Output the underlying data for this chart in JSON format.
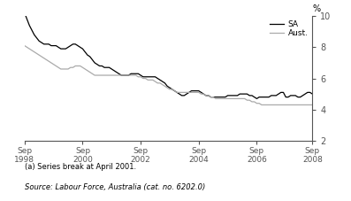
{
  "title": "",
  "ylabel": "%",
  "ylim": [
    2,
    10
  ],
  "yticks": [
    2,
    4,
    6,
    8,
    10
  ],
  "footnote1": "(a) Series break at April 2001.",
  "footnote2": "Source: Labour Force, Australia (cat. no. 6202.0)",
  "legend_sa": "SA",
  "legend_aust": "Aust.",
  "sa_color": "#000000",
  "aust_color": "#aaaaaa",
  "background_color": "#ffffff",
  "sa_data": [
    10.2,
    9.8,
    9.4,
    9.1,
    8.8,
    8.6,
    8.4,
    8.3,
    8.2,
    8.2,
    8.2,
    8.1,
    8.1,
    8.1,
    8.0,
    7.9,
    7.9,
    7.9,
    8.0,
    8.1,
    8.2,
    8.2,
    8.1,
    8.0,
    7.9,
    7.7,
    7.5,
    7.4,
    7.2,
    7.0,
    6.9,
    6.8,
    6.8,
    6.7,
    6.7,
    6.7,
    6.6,
    6.5,
    6.4,
    6.3,
    6.2,
    6.2,
    6.2,
    6.2,
    6.3,
    6.3,
    6.3,
    6.3,
    6.2,
    6.1,
    6.1,
    6.1,
    6.1,
    6.1,
    6.1,
    6.0,
    5.9,
    5.8,
    5.7,
    5.5,
    5.4,
    5.3,
    5.2,
    5.1,
    5.0,
    4.9,
    4.9,
    5.0,
    5.1,
    5.2,
    5.2,
    5.2,
    5.2,
    5.1,
    5.0,
    4.9,
    4.9,
    4.8,
    4.8,
    4.8,
    4.8,
    4.8,
    4.8,
    4.8,
    4.9,
    4.9,
    4.9,
    4.9,
    4.9,
    5.0,
    5.0,
    5.0,
    5.0,
    4.9,
    4.9,
    4.8,
    4.7,
    4.8,
    4.8,
    4.8,
    4.8,
    4.8,
    4.9,
    4.9,
    4.9,
    5.0,
    5.1,
    5.1,
    4.8,
    4.8,
    4.9,
    4.9,
    4.9,
    4.8,
    4.8,
    4.9,
    5.0,
    5.1,
    5.1,
    5.0
  ],
  "aust_data": [
    8.1,
    8.0,
    7.9,
    7.8,
    7.7,
    7.6,
    7.5,
    7.4,
    7.3,
    7.2,
    7.1,
    7.0,
    6.9,
    6.8,
    6.7,
    6.6,
    6.6,
    6.6,
    6.6,
    6.7,
    6.7,
    6.8,
    6.8,
    6.8,
    6.7,
    6.6,
    6.5,
    6.4,
    6.3,
    6.2,
    6.2,
    6.2,
    6.2,
    6.2,
    6.2,
    6.2,
    6.2,
    6.2,
    6.2,
    6.2,
    6.2,
    6.2,
    6.2,
    6.2,
    6.2,
    6.2,
    6.2,
    6.1,
    6.1,
    6.0,
    6.0,
    5.9,
    5.9,
    5.9,
    5.8,
    5.7,
    5.7,
    5.6,
    5.5,
    5.4,
    5.3,
    5.3,
    5.2,
    5.1,
    5.1,
    5.1,
    5.1,
    5.1,
    5.1,
    5.1,
    5.1,
    5.1,
    5.1,
    5.0,
    5.0,
    4.9,
    4.9,
    4.8,
    4.8,
    4.7,
    4.7,
    4.7,
    4.7,
    4.7,
    4.7,
    4.7,
    4.7,
    4.7,
    4.7,
    4.7,
    4.7,
    4.7,
    4.6,
    4.6,
    4.5,
    4.5,
    4.4,
    4.4,
    4.3,
    4.3,
    4.3,
    4.3,
    4.3,
    4.3,
    4.3,
    4.3,
    4.3,
    4.3,
    4.3,
    4.3,
    4.3,
    4.3,
    4.3,
    4.3,
    4.3,
    4.3,
    4.3,
    4.3,
    4.3,
    4.3
  ],
  "xtick_positions": [
    0,
    24,
    48,
    72,
    96,
    119
  ],
  "xtick_labels": [
    "Sep\n1998",
    "Sep\n2000",
    "Sep\n2002",
    "Sep\n2004",
    "Sep\n2006",
    "Sep\n2008"
  ]
}
